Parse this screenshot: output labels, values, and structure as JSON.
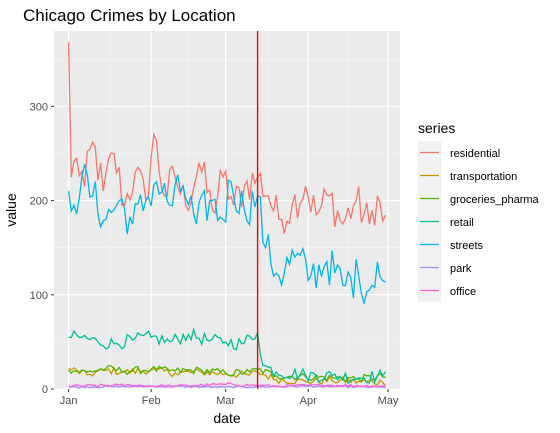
{
  "chart_data": {
    "type": "line",
    "title": "Chicago Crimes by Location",
    "xlabel": "date",
    "ylabel": "value",
    "x_range": [
      "2018-01-01",
      "2018-04-30"
    ],
    "ylim": [
      0,
      380
    ],
    "x_ticks": [
      {
        "date": "2018-01-01",
        "label": "Jan"
      },
      {
        "date": "2018-02-01",
        "label": "Feb"
      },
      {
        "date": "2018-03-01",
        "label": "Mar"
      },
      {
        "date": "2018-04-01",
        "label": "Apr"
      },
      {
        "date": "2018-05-01",
        "label": "May"
      }
    ],
    "y_ticks": [
      0,
      100,
      200,
      300
    ],
    "grid": true,
    "legend_position": "right",
    "legend_title": "series",
    "vline": {
      "date": "2018-03-13",
      "color": "#ff0000"
    },
    "series": [
      {
        "name": "residential",
        "color": "#F8766D",
        "anchors": [
          [
            "2018-01-01",
            368
          ],
          [
            "2018-01-02",
            225
          ],
          [
            "2018-01-04",
            245
          ],
          [
            "2018-01-07",
            215
          ],
          [
            "2018-01-10",
            262
          ],
          [
            "2018-01-14",
            210
          ],
          [
            "2018-01-18",
            250
          ],
          [
            "2018-01-22",
            195
          ],
          [
            "2018-01-26",
            230
          ],
          [
            "2018-01-30",
            200
          ],
          [
            "2018-02-02",
            270
          ],
          [
            "2018-02-06",
            205
          ],
          [
            "2018-02-10",
            225
          ],
          [
            "2018-02-14",
            195
          ],
          [
            "2018-02-19",
            240
          ],
          [
            "2018-02-24",
            190
          ],
          [
            "2018-02-28",
            225
          ],
          [
            "2018-03-04",
            195
          ],
          [
            "2018-03-08",
            215
          ],
          [
            "2018-03-13",
            225
          ],
          [
            "2018-03-17",
            205
          ],
          [
            "2018-03-21",
            180
          ],
          [
            "2018-03-26",
            195
          ],
          [
            "2018-03-31",
            215
          ],
          [
            "2018-04-04",
            185
          ],
          [
            "2018-04-09",
            205
          ],
          [
            "2018-04-14",
            175
          ],
          [
            "2018-04-19",
            200
          ],
          [
            "2018-04-24",
            175
          ],
          [
            "2018-04-27",
            205
          ],
          [
            "2018-04-29",
            178
          ]
        ]
      },
      {
        "name": "transportation",
        "color": "#C49A00",
        "anchors": [
          [
            "2018-01-01",
            22
          ],
          [
            "2018-01-08",
            15
          ],
          [
            "2018-01-15",
            20
          ],
          [
            "2018-01-22",
            18
          ],
          [
            "2018-02-01",
            20
          ],
          [
            "2018-02-10",
            17
          ],
          [
            "2018-02-20",
            18
          ],
          [
            "2018-03-01",
            16
          ],
          [
            "2018-03-10",
            15
          ],
          [
            "2018-03-13",
            18
          ],
          [
            "2018-03-20",
            10
          ],
          [
            "2018-03-31",
            8
          ],
          [
            "2018-04-10",
            9
          ],
          [
            "2018-04-20",
            8
          ],
          [
            "2018-04-29",
            7
          ]
        ]
      },
      {
        "name": "groceries_pharma",
        "color": "#53B400",
        "anchors": [
          [
            "2018-01-01",
            20
          ],
          [
            "2018-01-08",
            18
          ],
          [
            "2018-01-15",
            22
          ],
          [
            "2018-01-22",
            19
          ],
          [
            "2018-02-01",
            21
          ],
          [
            "2018-02-10",
            19
          ],
          [
            "2018-02-20",
            20
          ],
          [
            "2018-03-01",
            17
          ],
          [
            "2018-03-10",
            18
          ],
          [
            "2018-03-13",
            21
          ],
          [
            "2018-03-20",
            14
          ],
          [
            "2018-03-31",
            13
          ],
          [
            "2018-04-10",
            12
          ],
          [
            "2018-04-20",
            11
          ],
          [
            "2018-04-29",
            13
          ]
        ]
      },
      {
        "name": "retail",
        "color": "#00C094",
        "anchors": [
          [
            "2018-01-01",
            55
          ],
          [
            "2018-01-06",
            55
          ],
          [
            "2018-01-12",
            50
          ],
          [
            "2018-01-18",
            48
          ],
          [
            "2018-01-25",
            52
          ],
          [
            "2018-02-01",
            55
          ],
          [
            "2018-02-08",
            50
          ],
          [
            "2018-02-15",
            58
          ],
          [
            "2018-02-22",
            52
          ],
          [
            "2018-03-01",
            50
          ],
          [
            "2018-03-07",
            48
          ],
          [
            "2018-03-13",
            60
          ],
          [
            "2018-03-15",
            25
          ],
          [
            "2018-03-20",
            18
          ],
          [
            "2018-03-31",
            15
          ],
          [
            "2018-04-10",
            14
          ],
          [
            "2018-04-20",
            12
          ],
          [
            "2018-04-29",
            14
          ]
        ]
      },
      {
        "name": "streets",
        "color": "#00B6EB",
        "anchors": [
          [
            "2018-01-01",
            210
          ],
          [
            "2018-01-03",
            195
          ],
          [
            "2018-01-06",
            225
          ],
          [
            "2018-01-10",
            205
          ],
          [
            "2018-01-15",
            180
          ],
          [
            "2018-01-20",
            200
          ],
          [
            "2018-01-25",
            175
          ],
          [
            "2018-01-30",
            200
          ],
          [
            "2018-02-03",
            220
          ],
          [
            "2018-02-08",
            195
          ],
          [
            "2018-02-13",
            215
          ],
          [
            "2018-02-18",
            175
          ],
          [
            "2018-02-23",
            200
          ],
          [
            "2018-02-28",
            180
          ],
          [
            "2018-03-03",
            220
          ],
          [
            "2018-03-08",
            190
          ],
          [
            "2018-03-13",
            205
          ],
          [
            "2018-03-16",
            150
          ],
          [
            "2018-03-21",
            120
          ],
          [
            "2018-03-27",
            140
          ],
          [
            "2018-04-02",
            120
          ],
          [
            "2018-04-08",
            135
          ],
          [
            "2018-04-14",
            110
          ],
          [
            "2018-04-20",
            120
          ],
          [
            "2018-04-24",
            105
          ],
          [
            "2018-04-27",
            135
          ],
          [
            "2018-04-29",
            115
          ]
        ]
      },
      {
        "name": "park",
        "color": "#A58AFF",
        "anchors": [
          [
            "2018-01-01",
            2
          ],
          [
            "2018-02-01",
            3
          ],
          [
            "2018-03-01",
            2
          ],
          [
            "2018-04-01",
            3
          ],
          [
            "2018-04-29",
            2
          ]
        ]
      },
      {
        "name": "office",
        "color": "#FB61D7",
        "anchors": [
          [
            "2018-01-01",
            3
          ],
          [
            "2018-01-20",
            4
          ],
          [
            "2018-02-10",
            3
          ],
          [
            "2018-03-01",
            5
          ],
          [
            "2018-03-20",
            3
          ],
          [
            "2018-04-10",
            4
          ],
          [
            "2018-04-29",
            3
          ]
        ]
      }
    ]
  }
}
